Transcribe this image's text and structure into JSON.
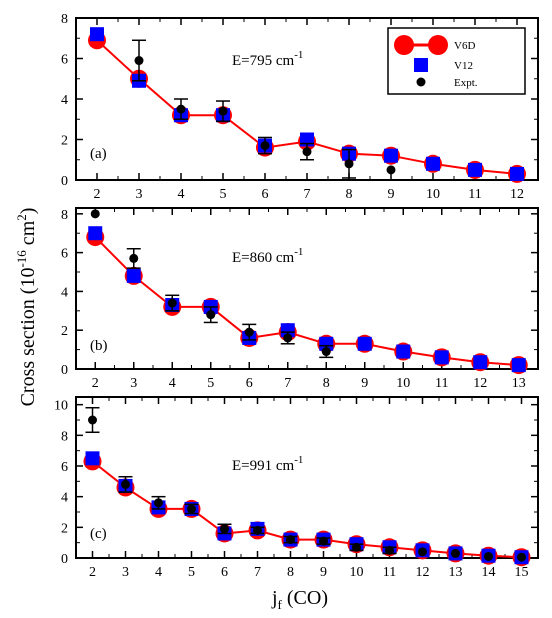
{
  "figure": {
    "ylabel_main": "Cross section (10",
    "ylabel_exp": "-16",
    "ylabel_unit": " cm",
    "ylabel_unit_exp": "2",
    "ylabel_close": ")",
    "xlabel_main": "j",
    "xlabel_sub": "f",
    "xlabel_rest": " (CO)"
  },
  "legend": {
    "items": [
      {
        "label": "V6D",
        "color": "#ff0000",
        "marker": "circle-line"
      },
      {
        "label": "V12",
        "color": "#0000ff",
        "marker": "square"
      },
      {
        "label": "Expt.",
        "color": "#000000",
        "marker": "dot"
      }
    ]
  },
  "chart_data": [
    {
      "type": "line",
      "panel": "(a)",
      "energy_label": "E=795 cm",
      "energy_exp": "-1",
      "xlim": [
        1.5,
        12.5
      ],
      "ylim": [
        0,
        8
      ],
      "xticks": [
        2,
        3,
        4,
        5,
        6,
        7,
        8,
        9,
        10,
        11,
        12
      ],
      "yticks": [
        0,
        2,
        4,
        6,
        8
      ],
      "series": [
        {
          "name": "V6D",
          "x": [
            2,
            3,
            4,
            5,
            6,
            7,
            8,
            9,
            10,
            11,
            12
          ],
          "values": [
            6.9,
            5.0,
            3.2,
            3.2,
            1.6,
            1.9,
            1.3,
            1.2,
            0.8,
            0.5,
            0.3
          ]
        },
        {
          "name": "V12",
          "x": [
            2,
            3,
            4,
            5,
            6,
            7,
            8,
            9,
            10,
            11,
            12
          ],
          "values": [
            7.2,
            4.9,
            3.2,
            3.2,
            1.7,
            2.0,
            1.3,
            1.2,
            0.8,
            0.5,
            0.3
          ]
        },
        {
          "name": "Expt.",
          "x": [
            3,
            4,
            5,
            6,
            7,
            8,
            9
          ],
          "values": [
            5.9,
            3.5,
            3.4,
            1.7,
            1.4,
            0.8,
            0.5
          ],
          "err": [
            1.0,
            0.5,
            0.5,
            0.4,
            0.4,
            0.7,
            0
          ]
        }
      ]
    },
    {
      "type": "line",
      "panel": "(b)",
      "energy_label": "E=860 cm",
      "energy_exp": "-1",
      "xlim": [
        1.5,
        13.5
      ],
      "ylim": [
        0,
        8.3
      ],
      "xticks": [
        2,
        3,
        4,
        5,
        6,
        7,
        8,
        9,
        10,
        11,
        12,
        13
      ],
      "yticks": [
        0,
        2,
        4,
        6,
        8
      ],
      "series": [
        {
          "name": "V6D",
          "x": [
            2,
            3,
            4,
            5,
            6,
            7,
            8,
            9,
            10,
            11,
            12,
            13
          ],
          "values": [
            6.8,
            4.8,
            3.2,
            3.2,
            1.6,
            1.9,
            1.3,
            1.3,
            0.9,
            0.6,
            0.35,
            0.2
          ]
        },
        {
          "name": "V12",
          "x": [
            2,
            3,
            4,
            5,
            6,
            7,
            8,
            9,
            10,
            11,
            12,
            13
          ],
          "values": [
            7.0,
            4.8,
            3.3,
            3.2,
            1.6,
            2.0,
            1.3,
            1.3,
            0.9,
            0.6,
            0.35,
            0.2
          ]
        },
        {
          "name": "Expt.",
          "x": [
            2,
            3,
            4,
            5,
            6,
            7,
            8
          ],
          "values": [
            8.0,
            5.7,
            3.4,
            2.8,
            1.9,
            1.6,
            0.9
          ],
          "err": [
            0,
            0.5,
            0.4,
            0.4,
            0.4,
            0.3,
            0.3
          ]
        }
      ]
    },
    {
      "type": "line",
      "panel": "(c)",
      "energy_label": "E=991 cm",
      "energy_exp": "-1",
      "xlim": [
        1.5,
        15.5
      ],
      "ylim": [
        0,
        10.5
      ],
      "xticks": [
        2,
        3,
        4,
        5,
        6,
        7,
        8,
        9,
        10,
        11,
        12,
        13,
        14,
        15
      ],
      "yticks": [
        0,
        2,
        4,
        6,
        8,
        10
      ],
      "series": [
        {
          "name": "V6D",
          "x": [
            2,
            3,
            4,
            5,
            6,
            7,
            8,
            9,
            10,
            11,
            12,
            13,
            14,
            15
          ],
          "values": [
            6.3,
            4.6,
            3.2,
            3.2,
            1.6,
            1.8,
            1.2,
            1.2,
            0.9,
            0.7,
            0.5,
            0.3,
            0.15,
            0.05
          ]
        },
        {
          "name": "V12",
          "x": [
            2,
            3,
            4,
            5,
            6,
            7,
            8,
            9,
            10,
            11,
            12,
            13,
            14,
            15
          ],
          "values": [
            6.5,
            4.7,
            3.3,
            3.2,
            1.6,
            1.9,
            1.2,
            1.2,
            0.9,
            0.7,
            0.5,
            0.3,
            0.15,
            0.05
          ]
        },
        {
          "name": "Expt.",
          "x": [
            2,
            3,
            4,
            5,
            6,
            7,
            8,
            9,
            10,
            11,
            12,
            13,
            14,
            15
          ],
          "values": [
            9.0,
            4.8,
            3.6,
            3.2,
            1.9,
            1.8,
            1.2,
            1.1,
            0.7,
            0.5,
            0.4,
            0.3,
            0.1,
            0.05
          ],
          "err": [
            0.8,
            0.5,
            0.4,
            0.3,
            0.3,
            0.2,
            0.2,
            0.2,
            0.2,
            0.2,
            0,
            0,
            0,
            0
          ]
        }
      ]
    }
  ]
}
